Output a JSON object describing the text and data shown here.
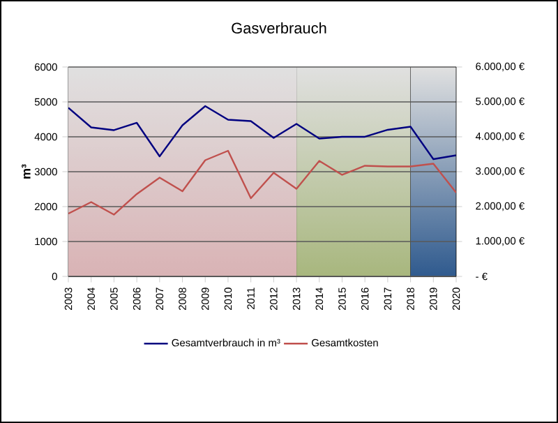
{
  "chart_data": {
    "type": "line",
    "title": "Gasverbrauch",
    "ylabel": "m³",
    "categories": [
      "2003",
      "2004",
      "2005",
      "2006",
      "2007",
      "2008",
      "2009",
      "2010",
      "2011",
      "2012",
      "2013",
      "2014",
      "2015",
      "2016",
      "2017",
      "2018",
      "2019",
      "2020"
    ],
    "series": [
      {
        "name": "Gesamtverbrauch in m³",
        "color": "#000080",
        "values": [
          4830,
          4270,
          4190,
          4400,
          3440,
          4330,
          4880,
          4490,
          4450,
          3970,
          4370,
          3950,
          4000,
          4000,
          4200,
          4290,
          3360,
          3470
        ]
      },
      {
        "name": "Gesamtkosten",
        "color": "#c0504d",
        "axis": "y2",
        "values": [
          1800,
          2130,
          1770,
          2360,
          2830,
          2440,
          3330,
          3600,
          2240,
          2970,
          2510,
          3310,
          2910,
          3170,
          3150,
          3150,
          3230,
          2400
        ]
      }
    ],
    "ylim": [
      0,
      6000
    ],
    "yticks": [
      0,
      1000,
      2000,
      3000,
      4000,
      5000,
      6000
    ],
    "y2lim": [
      0,
      6000
    ],
    "y2ticks": [
      {
        "value": 0,
        "label": "-   €"
      },
      {
        "value": 1000,
        "label": "1.000,00 €"
      },
      {
        "value": 2000,
        "label": "2.000,00 €"
      },
      {
        "value": 3000,
        "label": "3.000,00 €"
      },
      {
        "value": 4000,
        "label": "4.000,00 €"
      },
      {
        "value": 5000,
        "label": "5.000,00 €"
      },
      {
        "value": 6000,
        "label": "6.000,00 €"
      }
    ],
    "bands": [
      {
        "axis": "x",
        "from": "2003",
        "to": "2013",
        "color": "#d9b3b5"
      },
      {
        "axis": "x",
        "from": "2013",
        "to": "2018",
        "color": "#a8b77e"
      },
      {
        "axis": "x",
        "from": "2018",
        "to": "2020",
        "color": "#2f5a8e"
      }
    ],
    "grid": "y",
    "legend": "bottom",
    "marker": "none",
    "line_style": "solid"
  }
}
